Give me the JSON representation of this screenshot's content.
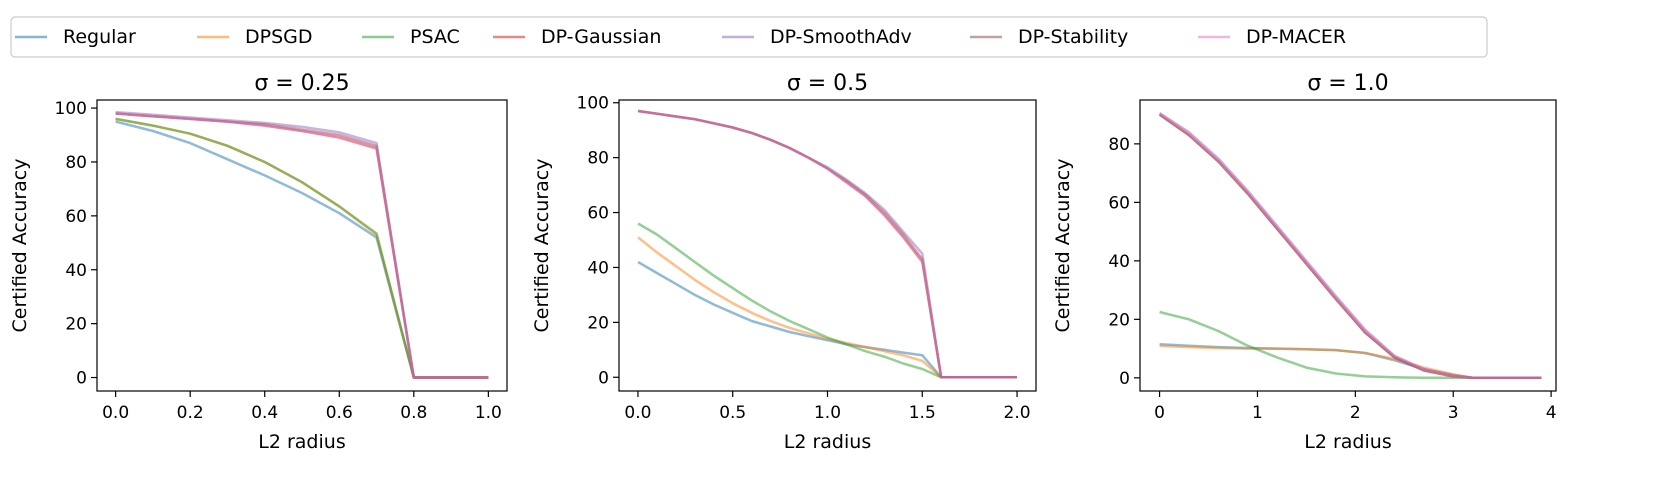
{
  "legend": {
    "placement": "top",
    "entries": [
      {
        "name": "Regular",
        "color": "#1f77b4"
      },
      {
        "name": "DPSGD",
        "color": "#ff7f0e"
      },
      {
        "name": "PSAC",
        "color": "#2ca02c"
      },
      {
        "name": "DP-Gaussian",
        "color": "#d62728"
      },
      {
        "name": "DP-SmoothAdv",
        "color": "#9467bd"
      },
      {
        "name": "DP-Stability",
        "color": "#8c564b"
      },
      {
        "name": "DP-MACER",
        "color": "#e377c2"
      }
    ]
  },
  "chart_data": [
    {
      "type": "line",
      "title": "σ = 0.25",
      "xlabel": "L2 radius",
      "ylabel": "Certified Accuracy",
      "xlim": [
        -0.05,
        1.05
      ],
      "ylim": [
        -5,
        103
      ],
      "xticks": [
        "0.0",
        "0.2",
        "0.4",
        "0.6",
        "0.8",
        "1.0"
      ],
      "xtick_values": [
        0,
        0.2,
        0.4,
        0.6,
        0.8,
        1.0
      ],
      "yticks": [
        "0",
        "20",
        "40",
        "60",
        "80",
        "100"
      ],
      "ytick_values": [
        0,
        20,
        40,
        60,
        80,
        100
      ],
      "grid": false,
      "x": [
        0,
        0.1,
        0.2,
        0.3,
        0.4,
        0.5,
        0.6,
        0.7,
        0.8,
        0.9,
        1.0
      ],
      "series": [
        {
          "name": "Regular",
          "values": [
            95,
            91.5,
            87,
            81,
            75,
            68.5,
            61,
            52,
            0,
            0,
            0
          ]
        },
        {
          "name": "DPSGD",
          "values": [
            96,
            93.5,
            90.5,
            86,
            80,
            72.5,
            63.5,
            53,
            0,
            0,
            0
          ]
        },
        {
          "name": "PSAC",
          "values": [
            96,
            93.5,
            90.5,
            86,
            80,
            72.5,
            63.5,
            53.5,
            0,
            0,
            0
          ]
        },
        {
          "name": "DP-Gaussian",
          "values": [
            98,
            97,
            96,
            95,
            93.5,
            91.5,
            89,
            85,
            0,
            0,
            0
          ]
        },
        {
          "name": "DP-SmoothAdv",
          "values": [
            98.5,
            97.5,
            96.5,
            95.5,
            94.5,
            93,
            91,
            87,
            0,
            0,
            0
          ]
        },
        {
          "name": "DP-Stability",
          "values": [
            98,
            97,
            96,
            95,
            94,
            92,
            90,
            86,
            0,
            0,
            0
          ]
        },
        {
          "name": "DP-MACER",
          "values": [
            98,
            97,
            96,
            95,
            93.5,
            91.5,
            89.5,
            85.5,
            0,
            0,
            0
          ]
        }
      ]
    },
    {
      "type": "line",
      "title": "σ = 0.5",
      "xlabel": "L2 radius",
      "ylabel": "Certified Accuracy",
      "xlim": [
        -0.1,
        2.1
      ],
      "ylim": [
        -5,
        101
      ],
      "xticks": [
        "0.0",
        "0.5",
        "1.0",
        "1.5",
        "2.0"
      ],
      "xtick_values": [
        0,
        0.5,
        1.0,
        1.5,
        2.0
      ],
      "yticks": [
        "0",
        "20",
        "40",
        "60",
        "80",
        "100"
      ],
      "ytick_values": [
        0,
        20,
        40,
        60,
        80,
        100
      ],
      "grid": false,
      "x": [
        0,
        0.1,
        0.2,
        0.3,
        0.4,
        0.5,
        0.6,
        0.7,
        0.8,
        0.9,
        1.0,
        1.1,
        1.2,
        1.3,
        1.4,
        1.5,
        1.6,
        1.7,
        1.8,
        1.9,
        2.0
      ],
      "series": [
        {
          "name": "Regular",
          "values": [
            42,
            38,
            34,
            30,
            26.5,
            23.5,
            20.5,
            18.5,
            16.5,
            15,
            13.5,
            12,
            11,
            10,
            9,
            8,
            0,
            0,
            0,
            0,
            0
          ]
        },
        {
          "name": "DPSGD",
          "values": [
            51,
            45.5,
            40.5,
            35.5,
            31,
            27,
            23.5,
            20.5,
            18,
            16,
            14,
            12.5,
            11,
            9.5,
            8,
            6,
            0,
            0,
            0,
            0,
            0
          ]
        },
        {
          "name": "PSAC",
          "values": [
            56,
            52,
            47,
            42,
            37,
            32.5,
            28,
            24,
            20.5,
            17.5,
            14.5,
            12,
            9.5,
            7.5,
            5,
            3,
            0,
            0,
            0,
            0,
            0
          ]
        },
        {
          "name": "DP-Gaussian",
          "values": [
            97,
            96,
            95,
            94,
            92.5,
            91,
            89,
            86.5,
            83.5,
            80,
            76,
            71,
            66,
            59,
            51,
            42,
            0,
            0,
            0,
            0,
            0
          ]
        },
        {
          "name": "DP-SmoothAdv",
          "values": [
            97,
            96,
            95,
            94,
            92.5,
            91,
            89,
            86.5,
            83.5,
            80,
            76.5,
            72,
            67,
            61,
            53,
            45,
            0,
            0,
            0,
            0,
            0
          ]
        },
        {
          "name": "DP-Stability",
          "values": [
            97,
            96,
            95,
            94,
            92.5,
            91,
            89,
            86.5,
            83.5,
            80,
            76,
            71.5,
            66.5,
            60,
            52,
            43,
            0,
            0,
            0,
            0,
            0
          ]
        },
        {
          "name": "DP-MACER",
          "values": [
            97,
            96,
            95,
            94,
            92.5,
            91,
            89,
            86.5,
            83.5,
            80,
            76,
            71,
            66,
            59.5,
            51.5,
            42.5,
            0,
            0,
            0,
            0,
            0
          ]
        }
      ]
    },
    {
      "type": "line",
      "title": "σ = 1.0",
      "xlabel": "L2 radius",
      "ylabel": "Certified Accuracy",
      "xlim": [
        -0.2,
        4.05
      ],
      "ylim": [
        -4.5,
        95
      ],
      "xticks": [
        "0",
        "1",
        "2",
        "3",
        "4"
      ],
      "xtick_values": [
        0,
        1,
        2,
        3,
        4
      ],
      "yticks": [
        "0",
        "20",
        "40",
        "60",
        "80"
      ],
      "ytick_values": [
        0,
        20,
        40,
        60,
        80
      ],
      "grid": false,
      "x": [
        0,
        0.3,
        0.6,
        0.9,
        1.2,
        1.5,
        1.8,
        2.1,
        2.4,
        2.7,
        3.0,
        3.2,
        3.5,
        3.9
      ],
      "series": [
        {
          "name": "Regular",
          "values": [
            11.5,
            11,
            10.5,
            10.2,
            10,
            9.8,
            9.5,
            8.5,
            6,
            3,
            1,
            0,
            0,
            0
          ]
        },
        {
          "name": "DPSGD",
          "values": [
            11,
            10.5,
            10.2,
            10,
            10,
            9.8,
            9.5,
            8.5,
            6.5,
            3.5,
            1.2,
            0,
            0,
            0
          ]
        },
        {
          "name": "PSAC",
          "values": [
            22.5,
            20,
            16,
            11,
            7,
            3.5,
            1.5,
            0.5,
            0.2,
            0,
            0,
            0,
            0,
            0
          ]
        },
        {
          "name": "DP-Gaussian",
          "values": [
            90,
            83,
            74,
            63,
            51,
            39,
            27,
            15.5,
            7,
            2.5,
            0.5,
            0,
            0,
            0
          ]
        },
        {
          "name": "DP-SmoothAdv",
          "values": [
            90.5,
            84,
            75,
            64,
            52,
            40,
            28,
            16.5,
            7.5,
            3,
            0.7,
            0,
            0,
            0
          ]
        },
        {
          "name": "DP-Stability",
          "values": [
            90,
            83,
            74,
            63,
            51,
            39,
            27,
            15.5,
            7,
            2.5,
            0.5,
            0,
            0,
            0
          ]
        },
        {
          "name": "DP-MACER",
          "values": [
            90.5,
            83.5,
            74.5,
            63.5,
            51.5,
            39.5,
            27.5,
            16,
            7.5,
            2.8,
            0.6,
            0,
            0,
            0
          ]
        }
      ]
    }
  ]
}
